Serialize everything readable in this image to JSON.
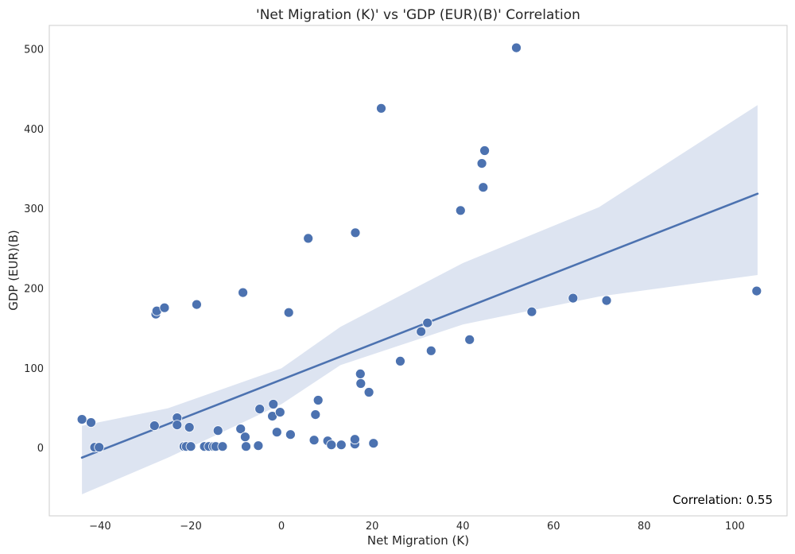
{
  "chart_data": {
    "type": "scatter",
    "title": "'Net Migration (K)' vs 'GDP (EUR)(B)' Correlation",
    "xlabel": "Net Migration (K)",
    "ylabel": "GDP (EUR)(B)",
    "xlim": [
      -51.2,
      111.5
    ],
    "ylim": [
      -85,
      530
    ],
    "xticks": [
      -40,
      -20,
      0,
      20,
      40,
      60,
      80,
      100
    ],
    "yticks": [
      0,
      100,
      200,
      300,
      400,
      500
    ],
    "xtick_labels": [
      "−40",
      "−20",
      "0",
      "20",
      "40",
      "60",
      "80",
      "100"
    ],
    "ytick_labels": [
      "0",
      "100",
      "200",
      "300",
      "400",
      "500"
    ],
    "grid": false,
    "annotation": "Correlation: 0.55",
    "annotation_position": "bottom-right",
    "colors": {
      "points": "#4c72b0",
      "line": "#4c72b0",
      "band": "#dde4f1",
      "frame": "#cccccc"
    },
    "points": [
      {
        "x": -44,
        "y": 36
      },
      {
        "x": -42,
        "y": 32
      },
      {
        "x": -41.2,
        "y": 1
      },
      {
        "x": -40.2,
        "y": 1
      },
      {
        "x": -28,
        "y": 28
      },
      {
        "x": -27.7,
        "y": 168
      },
      {
        "x": -27.5,
        "y": 172
      },
      {
        "x": -25.8,
        "y": 176
      },
      {
        "x": -23,
        "y": 38
      },
      {
        "x": -23,
        "y": 29
      },
      {
        "x": -21.5,
        "y": 2
      },
      {
        "x": -21,
        "y": 2
      },
      {
        "x": -20.3,
        "y": 26
      },
      {
        "x": -20,
        "y": 2
      },
      {
        "x": -18.7,
        "y": 180
      },
      {
        "x": -17,
        "y": 2
      },
      {
        "x": -16,
        "y": 2
      },
      {
        "x": -15,
        "y": 2
      },
      {
        "x": -14.5,
        "y": 2
      },
      {
        "x": -14,
        "y": 22
      },
      {
        "x": -13,
        "y": 2
      },
      {
        "x": -9,
        "y": 24
      },
      {
        "x": -8.5,
        "y": 195
      },
      {
        "x": -8,
        "y": 14
      },
      {
        "x": -7.8,
        "y": 2
      },
      {
        "x": -5.1,
        "y": 3
      },
      {
        "x": -4.8,
        "y": 49
      },
      {
        "x": -2,
        "y": 40
      },
      {
        "x": -1.8,
        "y": 55
      },
      {
        "x": -1,
        "y": 20
      },
      {
        "x": -0.3,
        "y": 45
      },
      {
        "x": 1.6,
        "y": 170
      },
      {
        "x": 2,
        "y": 17
      },
      {
        "x": 5.9,
        "y": 263
      },
      {
        "x": 7.2,
        "y": 10
      },
      {
        "x": 7.5,
        "y": 42
      },
      {
        "x": 8.1,
        "y": 60
      },
      {
        "x": 10.2,
        "y": 9
      },
      {
        "x": 11,
        "y": 4
      },
      {
        "x": 13.2,
        "y": 4
      },
      {
        "x": 16.2,
        "y": 5
      },
      {
        "x": 16.2,
        "y": 11
      },
      {
        "x": 16.3,
        "y": 270
      },
      {
        "x": 17.4,
        "y": 93
      },
      {
        "x": 17.5,
        "y": 81
      },
      {
        "x": 19.3,
        "y": 70
      },
      {
        "x": 20.3,
        "y": 6
      },
      {
        "x": 22,
        "y": 426
      },
      {
        "x": 26.2,
        "y": 109
      },
      {
        "x": 30.8,
        "y": 146
      },
      {
        "x": 32.2,
        "y": 157
      },
      {
        "x": 33,
        "y": 122
      },
      {
        "x": 39.5,
        "y": 298
      },
      {
        "x": 41.5,
        "y": 136
      },
      {
        "x": 44.2,
        "y": 357
      },
      {
        "x": 44.5,
        "y": 327
      },
      {
        "x": 44.8,
        "y": 373
      },
      {
        "x": 51.8,
        "y": 502
      },
      {
        "x": 55.2,
        "y": 171
      },
      {
        "x": 64.3,
        "y": 188
      },
      {
        "x": 71.7,
        "y": 185
      },
      {
        "x": 104.8,
        "y": 197
      }
    ],
    "regression": {
      "x_start": -44,
      "x_end": 105,
      "y_start": -12,
      "y_end": 319
    },
    "confidence_band": [
      {
        "x": -44,
        "lower": -58,
        "upper": 28
      },
      {
        "x": -25,
        "lower": -12,
        "upper": 50
      },
      {
        "x": 0,
        "lower": 55,
        "upper": 100
      },
      {
        "x": 13,
        "lower": 104,
        "upper": 152
      },
      {
        "x": 40,
        "lower": 155,
        "upper": 232
      },
      {
        "x": 70,
        "lower": 190,
        "upper": 302
      },
      {
        "x": 105,
        "lower": 217,
        "upper": 430
      }
    ]
  }
}
